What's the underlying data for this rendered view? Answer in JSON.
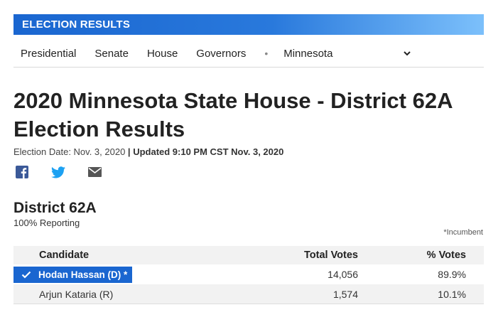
{
  "banner": {
    "title": "ELECTION RESULTS"
  },
  "nav": {
    "items": [
      "Presidential",
      "Senate",
      "House",
      "Governors"
    ],
    "separator": "•",
    "state_select": "Minnesota"
  },
  "page": {
    "title": "2020 Minnesota State House - District 62A Election Results",
    "election_date": "Election Date: Nov. 3, 2020",
    "divider": "|",
    "updated": "Updated 9:10 PM CST Nov. 3, 2020"
  },
  "share": {
    "icons": [
      "facebook-icon",
      "twitter-icon",
      "email-icon"
    ]
  },
  "race": {
    "name": "District 62A",
    "reporting": "100% Reporting",
    "incumbent_note": "*Incumbent",
    "columns": [
      "Candidate",
      "Total Votes",
      "% Votes"
    ],
    "rows": [
      {
        "name": "Hodan Hassan (D) *",
        "votes": "14,056",
        "pct": "89.9%",
        "winner": true
      },
      {
        "name": "Arjun Kataria (R)",
        "votes": "1,574",
        "pct": "10.1%",
        "winner": false
      }
    ]
  },
  "colors": {
    "accent": "#1a66d0",
    "banner_end": "#7cc0fb",
    "row_alt": "#f2f2f2"
  }
}
